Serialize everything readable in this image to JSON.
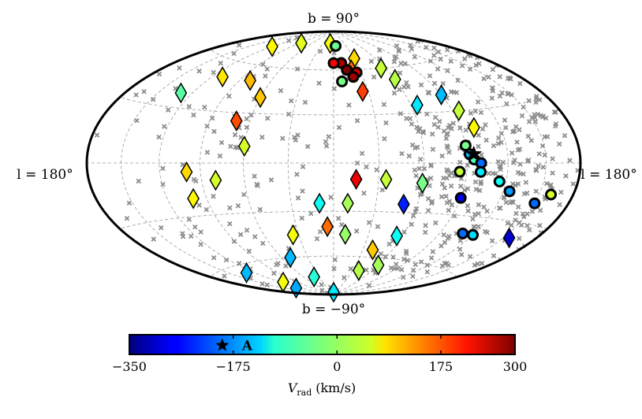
{
  "chart_data": {
    "type": "scatter",
    "projection": "aitoff / mollweide (galactic, all-sky)",
    "grid": true,
    "labels": {
      "top": "b = 90°",
      "bottom": "b = −90°",
      "left": "l = 180°",
      "right": "l = 180°"
    },
    "colorbar": {
      "min": -350,
      "max": 300,
      "ticks": [
        -350,
        -175,
        0,
        175,
        300
      ],
      "tick_labels": [
        "−350",
        "−175",
        "0",
        "175",
        "300"
      ],
      "label": "V_rad (km/s)",
      "label_main": "V",
      "label_sub": "rad",
      "label_unit": "(km/s)",
      "marker_value": -200,
      "marker_text": "A"
    },
    "star_marker": {
      "l": -95,
      "b": 5
    },
    "series": [
      {
        "marker": "diamond",
        "points": [
          {
            "l": 120,
            "b": 72,
            "v": 60
          },
          {
            "l": 85,
            "b": 78,
            "v": 40
          },
          {
            "l": 10,
            "b": 80,
            "v": 50
          },
          {
            "l": -30,
            "b": 68,
            "v": 80
          },
          {
            "l": -20,
            "b": 60,
            "v": 150
          },
          {
            "l": -25,
            "b": 45,
            "v": 180
          },
          {
            "l": -55,
            "b": 60,
            "v": 20
          },
          {
            "l": -60,
            "b": 52,
            "v": 10
          },
          {
            "l": -90,
            "b": 40,
            "v": -150
          },
          {
            "l": -95,
            "b": 30,
            "v": 20
          },
          {
            "l": -100,
            "b": 20,
            "v": 60
          },
          {
            "l": -65,
            "b": 35,
            "v": -120
          },
          {
            "l": 130,
            "b": 38,
            "v": -50
          },
          {
            "l": 110,
            "b": 50,
            "v": 70
          },
          {
            "l": 80,
            "b": 50,
            "v": 100
          },
          {
            "l": 60,
            "b": 40,
            "v": 90
          },
          {
            "l": 70,
            "b": 25,
            "v": 170
          },
          {
            "l": 60,
            "b": 10,
            "v": 30
          },
          {
            "l": 100,
            "b": -5,
            "v": 80
          },
          {
            "l": 80,
            "b": -10,
            "v": 30
          },
          {
            "l": 100,
            "b": -20,
            "v": 60
          },
          {
            "l": -15,
            "b": -10,
            "v": 230
          },
          {
            "l": -35,
            "b": -10,
            "v": 20
          },
          {
            "l": -50,
            "b": -25,
            "v": -250
          },
          {
            "l": -10,
            "b": -25,
            "v": 0
          },
          {
            "l": 10,
            "b": -25,
            "v": -100
          },
          {
            "l": 5,
            "b": -40,
            "v": 150
          },
          {
            "l": -10,
            "b": -45,
            "v": -10
          },
          {
            "l": 35,
            "b": -45,
            "v": 50
          },
          {
            "l": 50,
            "b": -60,
            "v": -150
          },
          {
            "l": -40,
            "b": -55,
            "v": 90
          },
          {
            "l": -60,
            "b": -65,
            "v": 0
          },
          {
            "l": -40,
            "b": -70,
            "v": 10
          },
          {
            "l": -55,
            "b": -45,
            "v": -100
          },
          {
            "l": 130,
            "b": -65,
            "v": -150
          },
          {
            "l": 115,
            "b": -75,
            "v": 50
          },
          {
            "l": 130,
            "b": -80,
            "v": -160
          },
          {
            "l": 0,
            "b": -88,
            "v": -120
          },
          {
            "l": -155,
            "b": -38,
            "v": -300
          },
          {
            "l": -60,
            "b": -12,
            "v": -30
          },
          {
            "l": 40,
            "b": -75,
            "v": -80
          }
        ]
      },
      {
        "marker": "circle",
        "points": [
          {
            "l": -5,
            "b": 78,
            "v": -40
          },
          {
            "l": -10,
            "b": 65,
            "v": 270
          },
          {
            "l": 0,
            "b": 65,
            "v": 220
          },
          {
            "l": -15,
            "b": 60,
            "v": 300
          },
          {
            "l": -25,
            "b": 58,
            "v": 240
          },
          {
            "l": -20,
            "b": 55,
            "v": 280
          },
          {
            "l": -8,
            "b": 52,
            "v": -30
          },
          {
            "l": -90,
            "b": 10,
            "v": -30
          },
          {
            "l": -92,
            "b": 5,
            "v": -150
          },
          {
            "l": -95,
            "b": 2,
            "v": -60
          },
          {
            "l": -100,
            "b": 0,
            "v": -200
          },
          {
            "l": -85,
            "b": -5,
            "v": 20
          },
          {
            "l": -100,
            "b": -5,
            "v": -120
          },
          {
            "l": -115,
            "b": -10,
            "v": -100
          },
          {
            "l": -125,
            "b": -15,
            "v": -170
          },
          {
            "l": -160,
            "b": -15,
            "v": 30
          },
          {
            "l": -90,
            "b": -20,
            "v": -280
          },
          {
            "l": -110,
            "b": -40,
            "v": -200
          },
          {
            "l": -120,
            "b": -40,
            "v": -130
          },
          {
            "l": -150,
            "b": -20,
            "v": -200
          }
        ]
      }
    ]
  }
}
